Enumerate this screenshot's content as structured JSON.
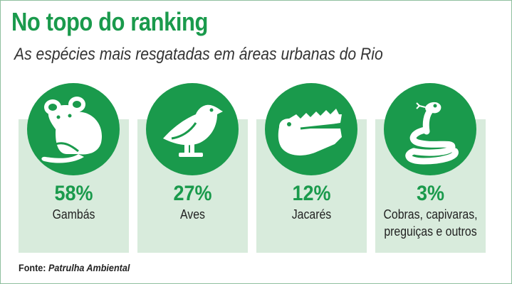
{
  "header": {
    "title": "No topo do ranking",
    "subtitle": "As espécies mais resgatadas em áreas urbanas do Rio"
  },
  "source": {
    "prefix": "Fonte:",
    "name": "Patrulha Ambiental"
  },
  "colors": {
    "accent": "#1a9a4c",
    "card_bg": "#d8ebdc",
    "text": "#222222"
  },
  "chart_data": {
    "type": "table",
    "title": "No topo do ranking",
    "subtitle": "As espécies mais resgatadas em áreas urbanas do Rio",
    "categories": [
      "Gambás",
      "Aves",
      "Jacarés",
      "Cobras, capivaras, preguiças e outros"
    ],
    "values": [
      58,
      27,
      12,
      3
    ],
    "unit": "%",
    "items": [
      {
        "pct": "58%",
        "label_lines": [
          "Gambás"
        ],
        "icon": "opossum-icon"
      },
      {
        "pct": "27%",
        "label_lines": [
          "Aves"
        ],
        "icon": "bird-icon"
      },
      {
        "pct": "12%",
        "label_lines": [
          "Jacarés"
        ],
        "icon": "alligator-icon"
      },
      {
        "pct": "3%",
        "label_lines": [
          "Cobras, capivaras,",
          "preguiças e outros"
        ],
        "icon": "snake-icon"
      }
    ]
  }
}
